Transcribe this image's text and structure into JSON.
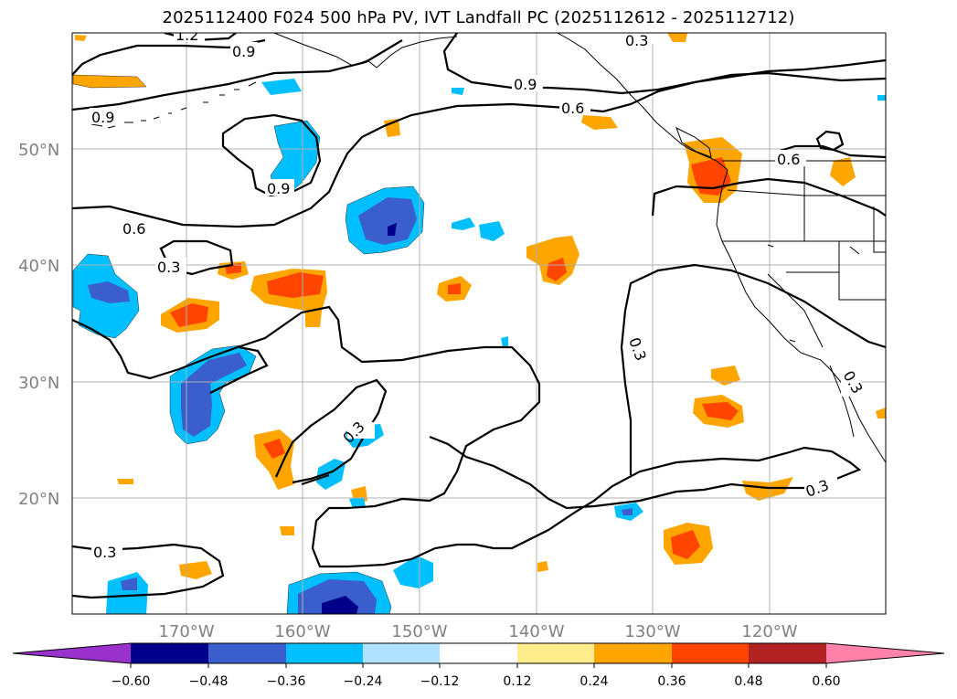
{
  "title": "2025112400 F024 500 hPa PV, IVT Landfall PC (2025112612 - 2025112712)",
  "map": {
    "lat_ticks": [
      {
        "value": 50,
        "label": "50°N"
      },
      {
        "value": 40,
        "label": "40°N"
      },
      {
        "value": 30,
        "label": "30°N"
      },
      {
        "value": 20,
        "label": "20°N"
      }
    ],
    "lon_ticks": [
      {
        "value": -170,
        "label": "170°W"
      },
      {
        "value": -160,
        "label": "160°W"
      },
      {
        "value": -150,
        "label": "150°W"
      },
      {
        "value": -140,
        "label": "140°W"
      },
      {
        "value": -130,
        "label": "130°W"
      },
      {
        "value": -120,
        "label": "120°W"
      }
    ],
    "contour_labels": [
      "1.2",
      "0.9",
      "0.9",
      "0.9",
      "0.9",
      "0.6",
      "0.6",
      "0.6",
      "0.3",
      "0.3",
      "0.3",
      "0.3",
      "0.3",
      "0.3",
      "0.3"
    ]
  },
  "colorbar": {
    "labels": [
      "−0.60",
      "−0.48",
      "−0.36",
      "−0.24",
      "−0.12",
      "0.12",
      "0.24",
      "0.36",
      "0.48",
      "0.60"
    ],
    "colors": [
      "#9932cc",
      "#00008b",
      "#3a5fcd",
      "#00bfff",
      "#b0e2ff",
      "#ffffff",
      "#ffec8b",
      "#ffa500",
      "#ff4500",
      "#b22222",
      "#ff82ab"
    ]
  }
}
